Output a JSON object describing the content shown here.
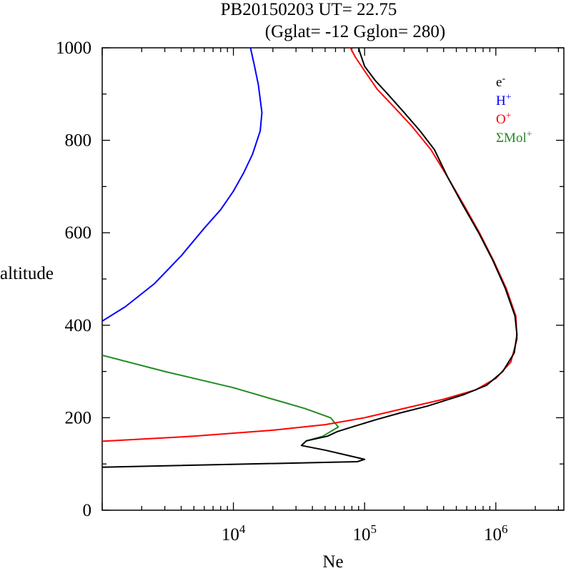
{
  "chart_data": {
    "type": "line",
    "title": "PB20150203   UT=  22.75",
    "subtitle": "(Gglat= -12   Gglon=  280)",
    "xlabel": "Ne",
    "ylabel": "altitude",
    "x_scale": "log",
    "xlim": [
      1000,
      3300000
    ],
    "ylim": [
      0,
      1000
    ],
    "x_tick_labels": [
      {
        "base": "10",
        "exp": "4",
        "value": 10000
      },
      {
        "base": "10",
        "exp": "5",
        "value": 100000
      },
      {
        "base": "10",
        "exp": "6",
        "value": 1000000
      }
    ],
    "y_ticks": [
      0,
      200,
      400,
      600,
      800,
      1000
    ],
    "legend_position": "top-right",
    "series": [
      {
        "name": "e-",
        "legend_base": "e",
        "legend_sup": "-",
        "color": "#000000",
        "points": [
          [
            1000,
            93
          ],
          [
            88000,
            105
          ],
          [
            100000,
            110
          ],
          [
            50000,
            130
          ],
          [
            33000,
            140
          ],
          [
            36000,
            150
          ],
          [
            52000,
            160
          ],
          [
            62000,
            170
          ],
          [
            80000,
            180
          ],
          [
            120000,
            195
          ],
          [
            185000,
            210
          ],
          [
            300000,
            225
          ],
          [
            570000,
            250
          ],
          [
            850000,
            270
          ],
          [
            1130000,
            300
          ],
          [
            1380000,
            340
          ],
          [
            1450000,
            380
          ],
          [
            1400000,
            420
          ],
          [
            1180000,
            480
          ],
          [
            950000,
            540
          ],
          [
            740000,
            600
          ],
          [
            560000,
            660
          ],
          [
            430000,
            720
          ],
          [
            340000,
            780
          ],
          [
            265000,
            820
          ],
          [
            200000,
            860
          ],
          [
            150000,
            900
          ],
          [
            120000,
            930
          ],
          [
            100000,
            960
          ],
          [
            92000,
            990
          ],
          [
            90000,
            1000
          ]
        ]
      },
      {
        "name": "H+",
        "legend_base": "H",
        "legend_sup": "+",
        "color": "#0000ff",
        "points": [
          [
            1000,
            409
          ],
          [
            1500,
            440
          ],
          [
            2500,
            490
          ],
          [
            4000,
            550
          ],
          [
            6000,
            610
          ],
          [
            8000,
            650
          ],
          [
            10000,
            690
          ],
          [
            12000,
            730
          ],
          [
            14000,
            770
          ],
          [
            16000,
            820
          ],
          [
            16500,
            860
          ],
          [
            15500,
            920
          ],
          [
            14500,
            960
          ],
          [
            13500,
            1000
          ]
        ]
      },
      {
        "name": "O+",
        "legend_base": "O",
        "legend_sup": "+",
        "color": "#ff0000",
        "points": [
          [
            1000,
            149
          ],
          [
            5000,
            160
          ],
          [
            20000,
            173
          ],
          [
            50000,
            185
          ],
          [
            100000,
            200
          ],
          [
            200000,
            220
          ],
          [
            400000,
            240
          ],
          [
            700000,
            260
          ],
          [
            1000000,
            285
          ],
          [
            1300000,
            320
          ],
          [
            1450000,
            370
          ],
          [
            1420000,
            420
          ],
          [
            1200000,
            480
          ],
          [
            960000,
            540
          ],
          [
            750000,
            600
          ],
          [
            570000,
            660
          ],
          [
            430000,
            720
          ],
          [
            320000,
            780
          ],
          [
            230000,
            830
          ],
          [
            170000,
            870
          ],
          [
            125000,
            910
          ],
          [
            100000,
            950
          ],
          [
            85000,
            980
          ],
          [
            78000,
            1000
          ]
        ]
      },
      {
        "name": "ΣMol+",
        "legend_base": "ΣMol",
        "legend_sup": "+",
        "color": "#228b22",
        "points": [
          [
            1000,
            335
          ],
          [
            3000,
            300
          ],
          [
            10000,
            265
          ],
          [
            20000,
            240
          ],
          [
            35000,
            220
          ],
          [
            55000,
            200
          ],
          [
            63000,
            180
          ],
          [
            48000,
            160
          ],
          [
            36000,
            150
          ],
          [
            33000,
            140
          ]
        ]
      }
    ]
  }
}
